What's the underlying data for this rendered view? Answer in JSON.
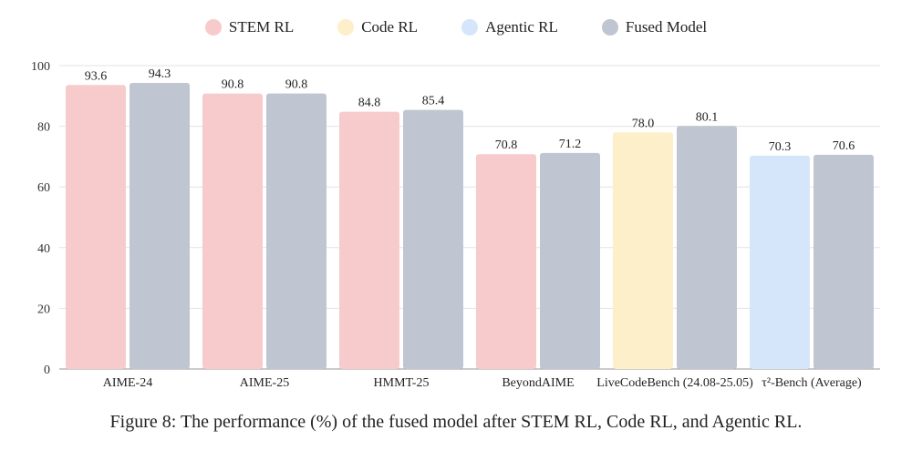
{
  "chart_data": {
    "type": "bar",
    "categories": [
      "AIME-24",
      "AIME-25",
      "HMMT-25",
      "BeyondAIME",
      "LiveCodeBench (24.08-25.05)",
      "τ²-Bench (Average)"
    ],
    "series": [
      {
        "name": "STEM RL",
        "color": "#f7cbcb",
        "values": [
          93.6,
          90.8,
          84.8,
          70.8,
          null,
          null
        ]
      },
      {
        "name": "Code RL",
        "color": "#fdefc9",
        "values": [
          null,
          null,
          null,
          null,
          78.0,
          null
        ]
      },
      {
        "name": "Agentic RL",
        "color": "#d6e6fa",
        "values": [
          null,
          null,
          null,
          null,
          null,
          70.3
        ]
      },
      {
        "name": "Fused Model",
        "color": "#bfc5d1",
        "values": [
          94.3,
          90.8,
          85.4,
          71.2,
          80.1,
          70.6
        ]
      }
    ],
    "ylim": [
      0,
      100
    ],
    "yticks": [
      0,
      20,
      40,
      60,
      80,
      100
    ],
    "grid": true,
    "legend_position": "top-center"
  },
  "caption": "Figure 8: The performance (%) of the fused model after STEM RL, Code RL, and Agentic RL."
}
